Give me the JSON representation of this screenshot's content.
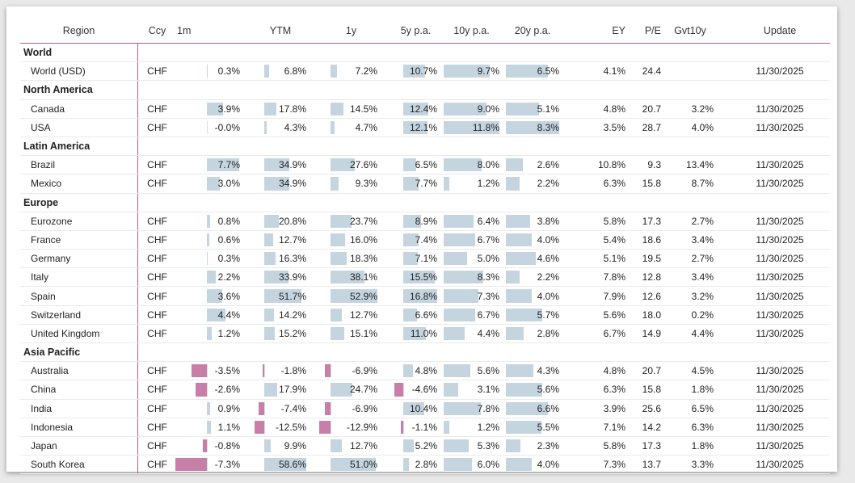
{
  "columns": [
    {
      "key": "region",
      "label": "Region"
    },
    {
      "key": "ccy",
      "label": "Ccy"
    },
    {
      "key": "m1",
      "label": "1m"
    },
    {
      "key": "ytm",
      "label": "YTM"
    },
    {
      "key": "y1",
      "label": "1y"
    },
    {
      "key": "y5",
      "label": "5y p.a."
    },
    {
      "key": "y10",
      "label": "10y p.a."
    },
    {
      "key": "y20",
      "label": "20y p.a."
    },
    {
      "key": "ey",
      "label": "EY"
    },
    {
      "key": "pe",
      "label": "P/E"
    },
    {
      "key": "gvt",
      "label": "Gvt10y"
    },
    {
      "key": "update",
      "label": "Update"
    }
  ],
  "colors": {
    "positive_bar": "#c5d5e0",
    "negative_bar": "#c77fa7",
    "divider": "#b85c8b"
  },
  "groups": [
    {
      "name": "World",
      "rows": [
        {
          "region": "World (USD)",
          "ccy": "CHF",
          "m1": "0.3%",
          "ytm": "6.8%",
          "y1": "7.2%",
          "y5": "10.7%",
          "y10": "9.7%",
          "y20": "6.5%",
          "ey": "4.1%",
          "pe": "24.4",
          "gvt": "",
          "update": "11/30/2025"
        }
      ]
    },
    {
      "name": "North America",
      "rows": [
        {
          "region": "Canada",
          "ccy": "CHF",
          "m1": "3.9%",
          "ytm": "17.8%",
          "y1": "14.5%",
          "y5": "12.4%",
          "y10": "9.0%",
          "y20": "5.1%",
          "ey": "4.8%",
          "pe": "20.7",
          "gvt": "3.2%",
          "update": "11/30/2025"
        },
        {
          "region": "USA",
          "ccy": "CHF",
          "m1": "-0.0%",
          "ytm": "4.3%",
          "y1": "4.7%",
          "y5": "12.1%",
          "y10": "11.8%",
          "y20": "8.3%",
          "ey": "3.5%",
          "pe": "28.7",
          "gvt": "4.0%",
          "update": "11/30/2025"
        }
      ]
    },
    {
      "name": "Latin America",
      "rows": [
        {
          "region": "Brazil",
          "ccy": "CHF",
          "m1": "7.7%",
          "ytm": "34.9%",
          "y1": "27.6%",
          "y5": "6.5%",
          "y10": "8.0%",
          "y20": "2.6%",
          "ey": "10.8%",
          "pe": "9.3",
          "gvt": "13.4%",
          "update": "11/30/2025"
        },
        {
          "region": "Mexico",
          "ccy": "CHF",
          "m1": "3.0%",
          "ytm": "34.9%",
          "y1": "9.3%",
          "y5": "7.7%",
          "y10": "1.2%",
          "y20": "2.2%",
          "ey": "6.3%",
          "pe": "15.8",
          "gvt": "8.7%",
          "update": "11/30/2025"
        }
      ]
    },
    {
      "name": "Europe",
      "rows": [
        {
          "region": "Eurozone",
          "ccy": "CHF",
          "m1": "0.8%",
          "ytm": "20.8%",
          "y1": "23.7%",
          "y5": "8.9%",
          "y10": "6.4%",
          "y20": "3.8%",
          "ey": "5.8%",
          "pe": "17.3",
          "gvt": "2.7%",
          "update": "11/30/2025"
        },
        {
          "region": "France",
          "ccy": "CHF",
          "m1": "0.6%",
          "ytm": "12.7%",
          "y1": "16.0%",
          "y5": "7.4%",
          "y10": "6.7%",
          "y20": "4.0%",
          "ey": "5.4%",
          "pe": "18.6",
          "gvt": "3.4%",
          "update": "11/30/2025"
        },
        {
          "region": "Germany",
          "ccy": "CHF",
          "m1": "0.3%",
          "ytm": "16.3%",
          "y1": "18.3%",
          "y5": "7.1%",
          "y10": "5.0%",
          "y20": "4.6%",
          "ey": "5.1%",
          "pe": "19.5",
          "gvt": "2.7%",
          "update": "11/30/2025"
        },
        {
          "region": "Italy",
          "ccy": "CHF",
          "m1": "2.2%",
          "ytm": "33.9%",
          "y1": "38.1%",
          "y5": "15.5%",
          "y10": "8.3%",
          "y20": "2.2%",
          "ey": "7.8%",
          "pe": "12.8",
          "gvt": "3.4%",
          "update": "11/30/2025"
        },
        {
          "region": "Spain",
          "ccy": "CHF",
          "m1": "3.6%",
          "ytm": "51.7%",
          "y1": "52.9%",
          "y5": "16.8%",
          "y10": "7.3%",
          "y20": "4.0%",
          "ey": "7.9%",
          "pe": "12.6",
          "gvt": "3.2%",
          "update": "11/30/2025"
        },
        {
          "region": "Switzerland",
          "ccy": "CHF",
          "m1": "4.4%",
          "ytm": "14.2%",
          "y1": "12.7%",
          "y5": "6.6%",
          "y10": "6.7%",
          "y20": "5.7%",
          "ey": "5.6%",
          "pe": "18.0",
          "gvt": "0.2%",
          "update": "11/30/2025"
        },
        {
          "region": "United Kingdom",
          "ccy": "CHF",
          "m1": "1.2%",
          "ytm": "15.2%",
          "y1": "15.1%",
          "y5": "11.0%",
          "y10": "4.4%",
          "y20": "2.8%",
          "ey": "6.7%",
          "pe": "14.9",
          "gvt": "4.4%",
          "update": "11/30/2025"
        }
      ]
    },
    {
      "name": "Asia Pacific",
      "rows": [
        {
          "region": "Australia",
          "ccy": "CHF",
          "m1": "-3.5%",
          "ytm": "-1.8%",
          "y1": "-6.9%",
          "y5": "4.8%",
          "y10": "5.6%",
          "y20": "4.3%",
          "ey": "4.8%",
          "pe": "20.7",
          "gvt": "4.5%",
          "update": "11/30/2025"
        },
        {
          "region": "China",
          "ccy": "CHF",
          "m1": "-2.6%",
          "ytm": "17.9%",
          "y1": "24.7%",
          "y5": "-4.6%",
          "y10": "3.1%",
          "y20": "5.6%",
          "ey": "6.3%",
          "pe": "15.8",
          "gvt": "1.8%",
          "update": "11/30/2025"
        },
        {
          "region": "India",
          "ccy": "CHF",
          "m1": "0.9%",
          "ytm": "-7.4%",
          "y1": "-6.9%",
          "y5": "10.4%",
          "y10": "7.8%",
          "y20": "6.6%",
          "ey": "3.9%",
          "pe": "25.6",
          "gvt": "6.5%",
          "update": "11/30/2025"
        },
        {
          "region": "Indonesia",
          "ccy": "CHF",
          "m1": "1.1%",
          "ytm": "-12.5%",
          "y1": "-12.9%",
          "y5": "-1.1%",
          "y10": "1.2%",
          "y20": "5.5%",
          "ey": "7.1%",
          "pe": "14.2",
          "gvt": "6.3%",
          "update": "11/30/2025"
        },
        {
          "region": "Japan",
          "ccy": "CHF",
          "m1": "-0.8%",
          "ytm": "9.9%",
          "y1": "12.7%",
          "y5": "5.2%",
          "y10": "5.3%",
          "y20": "2.3%",
          "ey": "5.8%",
          "pe": "17.3",
          "gvt": "1.8%",
          "update": "11/30/2025"
        },
        {
          "region": "South Korea",
          "ccy": "CHF",
          "m1": "-7.3%",
          "ytm": "58.6%",
          "y1": "51.0%",
          "y5": "2.8%",
          "y10": "6.0%",
          "y20": "4.0%",
          "ey": "7.3%",
          "pe": "13.7",
          "gvt": "3.3%",
          "update": "11/30/2025"
        }
      ]
    }
  ]
}
